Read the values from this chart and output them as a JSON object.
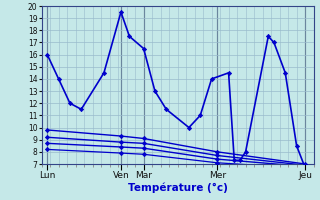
{
  "bg_color": "#c5e8e8",
  "grid_color": "#99bbcc",
  "line_color": "#0000cc",
  "xlabel": "Température (°c)",
  "ylim": [
    7,
    20
  ],
  "xlim": [
    0,
    96
  ],
  "yticks": [
    7,
    8,
    9,
    10,
    11,
    12,
    13,
    14,
    15,
    16,
    17,
    18,
    19,
    20
  ],
  "day_positions": [
    2,
    28,
    36,
    62,
    93
  ],
  "day_labels": [
    "Lun",
    "Ven",
    "Mar",
    "Mer",
    "Jeu"
  ],
  "minor_x_step": 3,
  "series": [
    {
      "x": [
        2,
        6,
        10,
        14,
        22,
        28,
        31,
        36,
        40,
        44,
        52,
        56,
        60,
        66,
        68,
        70,
        72,
        80,
        82,
        86,
        90,
        93
      ],
      "y": [
        16,
        14,
        12,
        11.5,
        14.5,
        19.5,
        17.5,
        16.5,
        13,
        11.5,
        10,
        11,
        14,
        14.5,
        7.3,
        7.3,
        8.0,
        17.5,
        17.0,
        14.5,
        8.5,
        6.7
      ],
      "lw": 1.2
    },
    {
      "x": [
        2,
        28,
        36,
        62,
        93
      ],
      "y": [
        9.8,
        9.3,
        9.1,
        8.0,
        7.0
      ],
      "lw": 1.0
    },
    {
      "x": [
        2,
        28,
        36,
        62,
        93
      ],
      "y": [
        9.2,
        8.8,
        8.7,
        7.7,
        6.9
      ],
      "lw": 1.0
    },
    {
      "x": [
        2,
        28,
        36,
        62,
        93
      ],
      "y": [
        8.7,
        8.4,
        8.3,
        7.4,
        6.8
      ],
      "lw": 1.0
    },
    {
      "x": [
        2,
        28,
        36,
        62,
        93
      ],
      "y": [
        8.2,
        7.9,
        7.8,
        7.1,
        6.65
      ],
      "lw": 0.9
    }
  ],
  "vline_positions": [
    2,
    28,
    36,
    62,
    93
  ],
  "vline_color": "#334466",
  "title_color": "#0000cc",
  "xlabel_fontsize": 7.5,
  "ytick_fontsize": 5.5,
  "xtick_fontsize": 6.5
}
